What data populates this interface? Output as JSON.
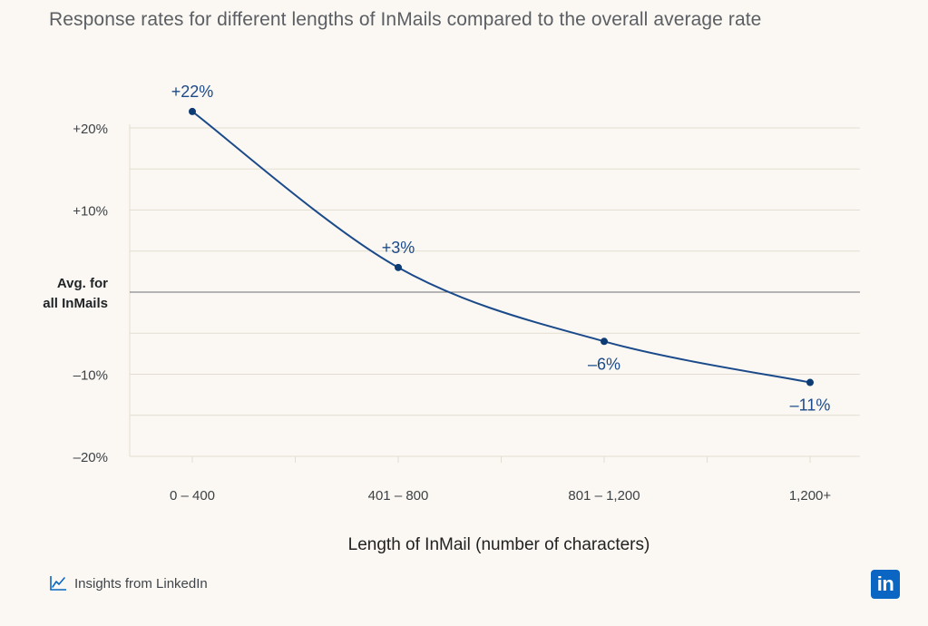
{
  "title": "Response rates for different lengths of InMails compared to the overall average rate",
  "footer_text": "Insights from LinkedIn",
  "logo_text": "in",
  "colors": {
    "line": "#1b4a8a",
    "point": "#0d3b73",
    "label": "#1b4a8a",
    "grid": "#e3ddd2",
    "avg_line": "#6b6f73",
    "background": "#fbf8f3",
    "brand": "#0a66c2"
  },
  "chart_data": {
    "type": "line",
    "title": "Response rates for different lengths of InMails compared to the overall average rate",
    "xlabel": "Length of InMail (number of characters)",
    "ylabel": "",
    "categories": [
      "0 – 400",
      "401 – 800",
      "801 – 1,200",
      "1,200+"
    ],
    "series": [
      {
        "values": [
          22,
          3,
          -6,
          -11
        ],
        "data_labels": [
          "+22%",
          "+3%",
          "–6%",
          "–11%"
        ]
      }
    ],
    "ylim": [
      -20,
      25
    ],
    "yticks": [
      {
        "value": 20,
        "label": "+20%"
      },
      {
        "value": 10,
        "label": "+10%"
      },
      {
        "value": -10,
        "label": "–10%"
      },
      {
        "value": -20,
        "label": "–20%"
      }
    ],
    "reference_line": {
      "value": 0,
      "label_lines": [
        "Avg. for",
        "all InMails"
      ]
    },
    "grid": true,
    "legend": "none"
  }
}
